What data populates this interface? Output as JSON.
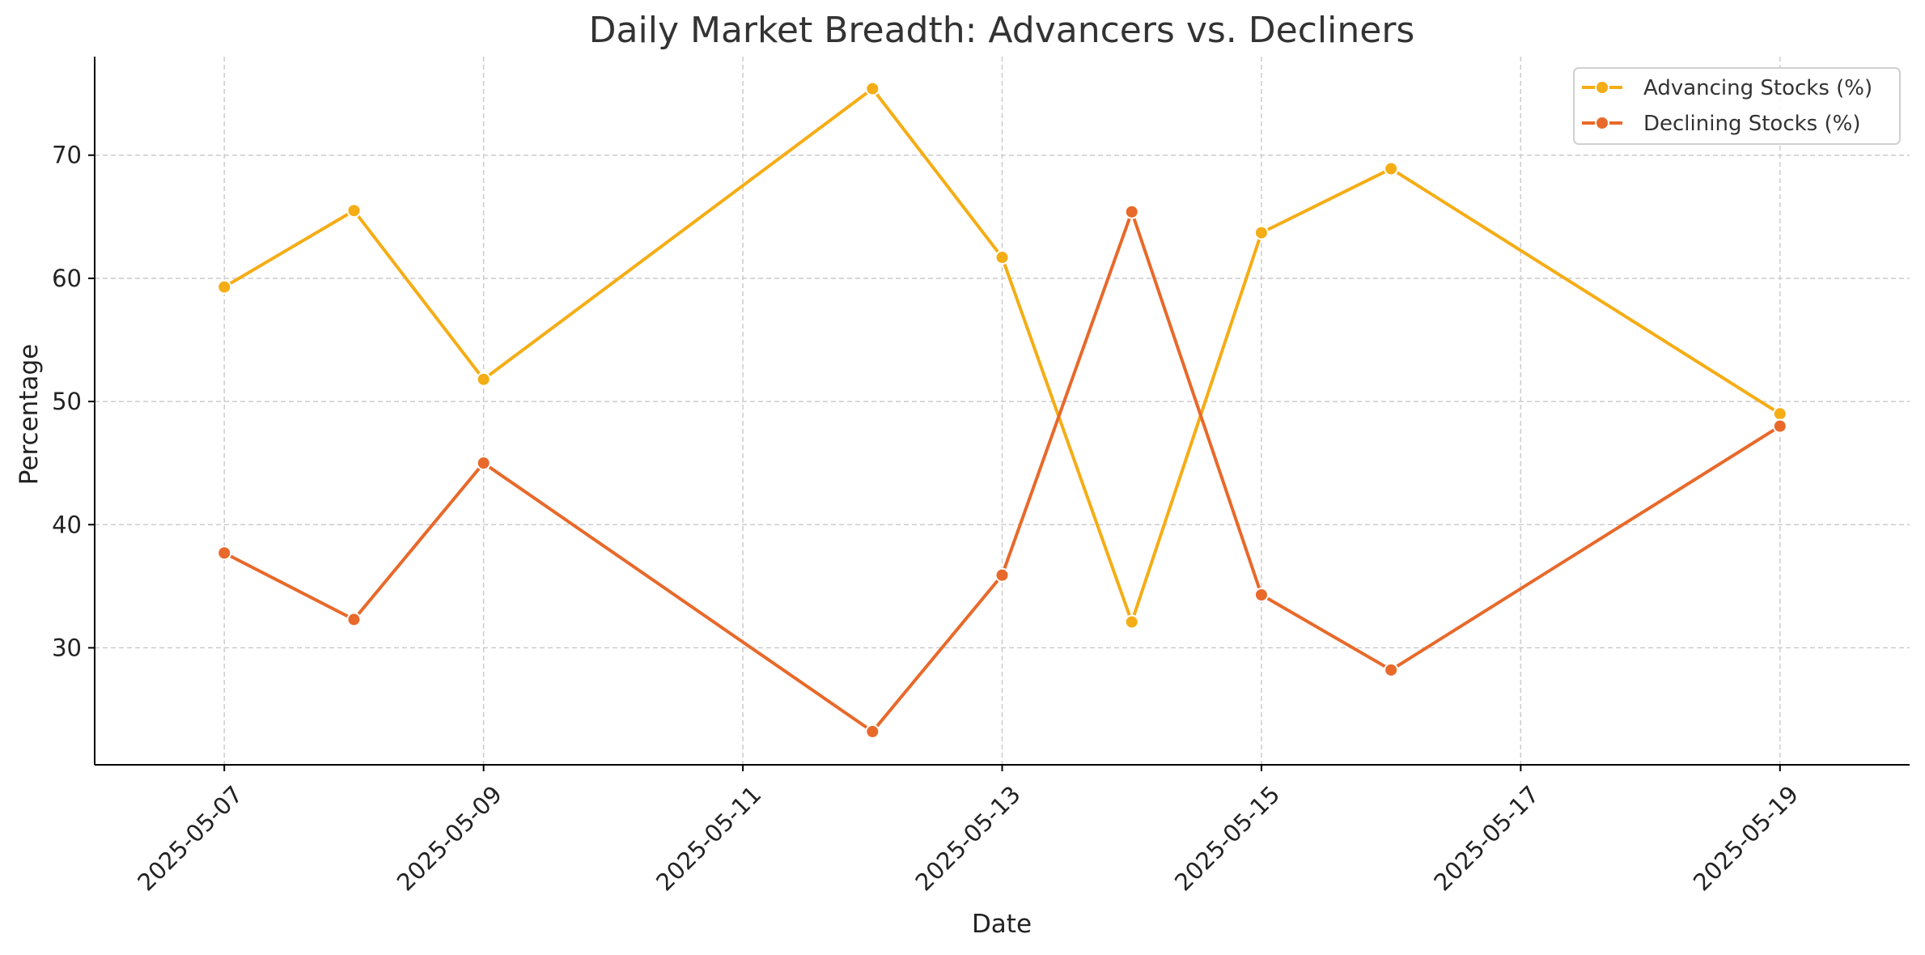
{
  "chart_data": {
    "type": "line",
    "title": "Daily Market Breadth: Advancers vs. Decliners",
    "xlabel": "Date",
    "ylabel": "Percentage",
    "x": [
      "2025-05-07",
      "2025-05-08",
      "2025-05-09",
      "2025-05-12",
      "2025-05-13",
      "2025-05-14",
      "2025-05-15",
      "2025-05-16",
      "2025-05-19"
    ],
    "x_ticks": [
      "2025-05-07",
      "2025-05-09",
      "2025-05-11",
      "2025-05-13",
      "2025-05-15",
      "2025-05-17",
      "2025-05-19"
    ],
    "y_ticks": [
      30,
      40,
      50,
      60,
      70
    ],
    "xlim": [
      "2025-05-06",
      "2025-05-20"
    ],
    "ylim": [
      20.5,
      78
    ],
    "grid": true,
    "legend_position": "top-right",
    "series": [
      {
        "name": "Advancing Stocks (%)",
        "color": "#f5ad15",
        "values": [
          59.3,
          65.5,
          51.8,
          75.4,
          61.7,
          32.1,
          63.7,
          68.9,
          49.0
        ]
      },
      {
        "name": "Declining Stocks (%)",
        "color": "#e8692a",
        "values": [
          37.7,
          32.3,
          45.0,
          23.2,
          35.9,
          65.4,
          34.3,
          28.2,
          48.0
        ]
      }
    ]
  }
}
